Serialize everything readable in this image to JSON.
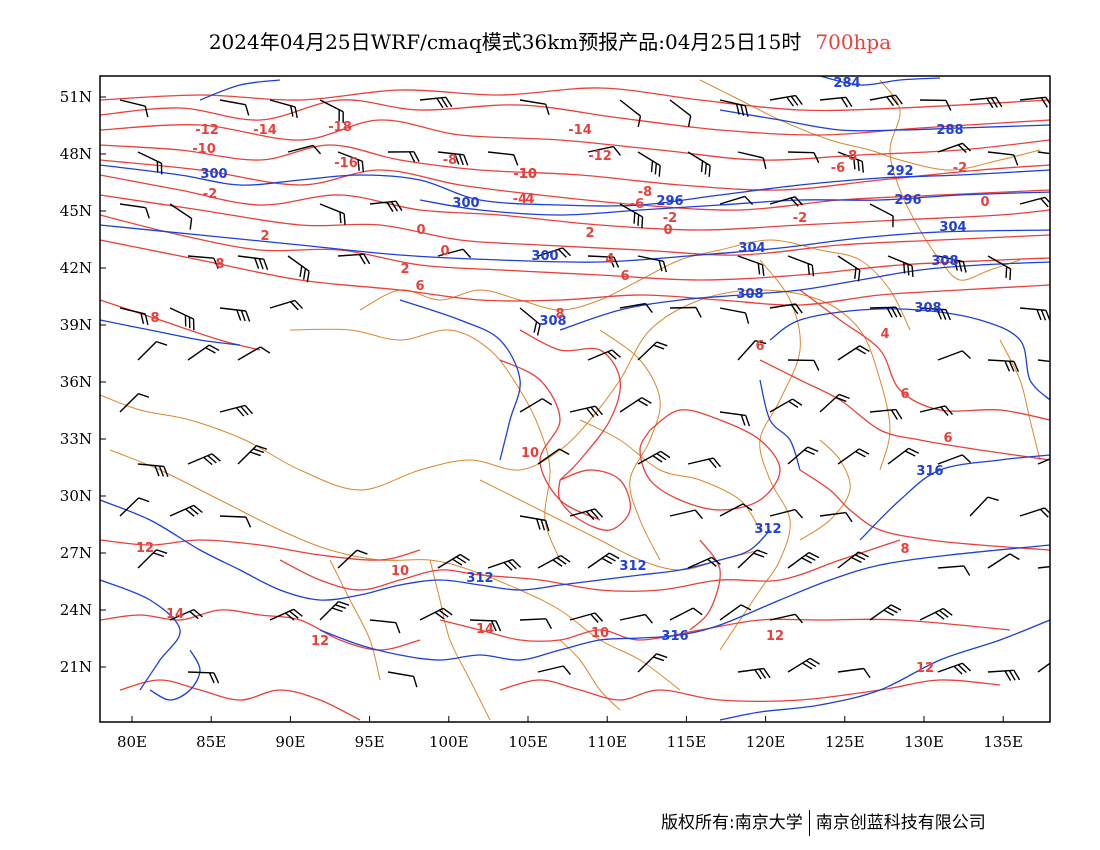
{
  "title": {
    "main": "2024年04月25日WRF/cmaq模式36km预报产品:04月25日15时",
    "level": "700hpa"
  },
  "axes": {
    "lat_labels": [
      "51N",
      "48N",
      "45N",
      "42N",
      "39N",
      "36N",
      "33N",
      "30N",
      "27N",
      "24N",
      "21N"
    ],
    "lon_labels": [
      "80E",
      "85E",
      "90E",
      "95E",
      "100E",
      "105E",
      "110E",
      "115E",
      "120E",
      "125E",
      "130E",
      "135E"
    ]
  },
  "colors": {
    "temperature": "#e8413c",
    "geopotential": "#1f3fd8",
    "boundary": "#d9882e",
    "wind": "#000000",
    "frame": "#000000"
  },
  "geopotential_labels": [
    "284",
    "288",
    "292",
    "296",
    "296",
    "300",
    "300",
    "300",
    "304",
    "304",
    "308",
    "308",
    "308",
    "308",
    "312",
    "312",
    "312",
    "316",
    "316"
  ],
  "temperature_labels": [
    "-18",
    "-16",
    "-14",
    "-14",
    "-12",
    "-12",
    "-10",
    "-10",
    "-8",
    "-8",
    "-8",
    "-6",
    "-6",
    "-4",
    "-2",
    "-2",
    "-2",
    "-2",
    "0",
    "0",
    "0",
    "0",
    "2",
    "2",
    "2",
    "4",
    "4",
    "4",
    "6",
    "6",
    "6",
    "6",
    "6",
    "8",
    "8",
    "8",
    "8",
    "10",
    "10",
    "10",
    "10",
    "12",
    "12",
    "12",
    "12",
    "14",
    "14"
  ],
  "footer": {
    "copyright": "版权所有:南京大学",
    "company": "南京创蓝科技有限公司"
  }
}
